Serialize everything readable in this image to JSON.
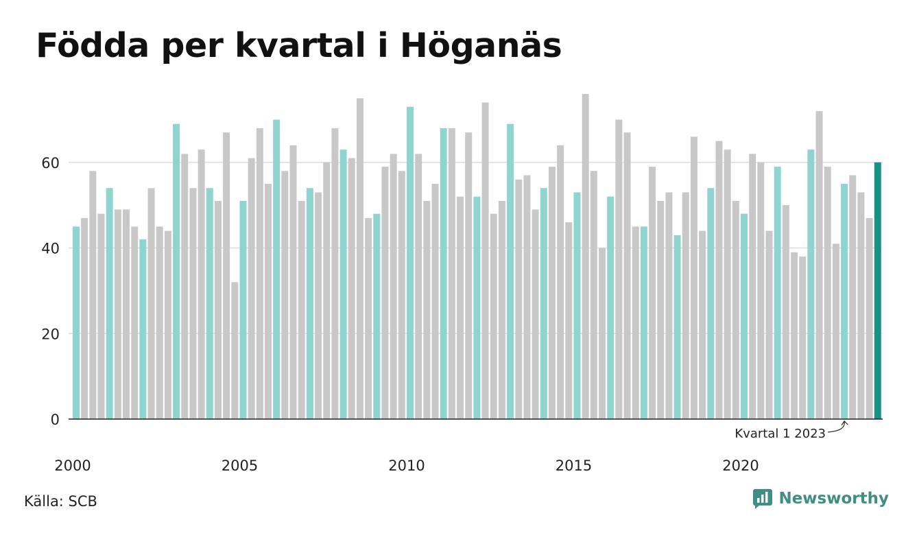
{
  "title": "Födda per kvartal i Höganäs",
  "source": "Källa: SCB",
  "brand": {
    "name": "Newsworthy",
    "icon": "newsworthy-logo-icon"
  },
  "colors": {
    "q1": "#8fd4ce",
    "other": "#c8c8c8",
    "highlight": "#1a9185",
    "grid": "#dddddd",
    "axis": "#222222",
    "brand": "#3e8e83"
  },
  "chart_data": {
    "type": "bar",
    "title": "Födda per kvartal i Höganäs",
    "xlabel": "",
    "ylabel": "",
    "ylim": [
      0,
      76
    ],
    "y_ticks": [
      0,
      20,
      40,
      60
    ],
    "x_tick_labels": [
      "2000",
      "2005",
      "2010",
      "2015",
      "2020"
    ],
    "grid": true,
    "legend": "none",
    "start": {
      "year": 2000,
      "quarter": 1
    },
    "values": [
      45,
      47,
      58,
      48,
      54,
      49,
      49,
      45,
      42,
      54,
      45,
      44,
      69,
      62,
      54,
      63,
      54,
      51,
      67,
      32,
      51,
      61,
      68,
      55,
      70,
      58,
      64,
      51,
      54,
      53,
      60,
      68,
      63,
      61,
      75,
      47,
      48,
      59,
      62,
      58,
      73,
      62,
      51,
      55,
      68,
      68,
      52,
      67,
      52,
      74,
      48,
      51,
      69,
      56,
      57,
      49,
      54,
      59,
      64,
      46,
      53,
      76,
      58,
      40,
      52,
      70,
      67,
      45,
      45,
      59,
      51,
      53,
      43,
      53,
      66,
      44,
      54,
      65,
      63,
      51,
      48,
      62,
      60,
      44,
      59,
      50,
      39,
      38,
      63,
      72,
      59,
      41,
      55,
      57,
      53,
      47,
      60
    ],
    "annotation": {
      "text": "Kvartal 1 2023",
      "target": "2023 Q1"
    }
  }
}
